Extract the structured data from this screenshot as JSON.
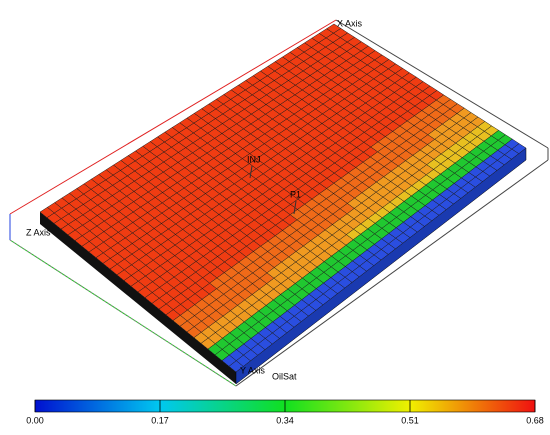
{
  "scene": {
    "axes": {
      "x": "X Axis",
      "y": "Y Axis",
      "z": "Z Axis"
    },
    "wells": [
      "INJ",
      "P1"
    ],
    "property": "OilSat"
  },
  "colorbar": {
    "range": [
      0,
      0.68
    ],
    "ticks": [
      {
        "value": 0,
        "label": "0.00"
      },
      {
        "value": 0.17,
        "label": "0.17"
      },
      {
        "value": 0.34,
        "label": "0.34"
      },
      {
        "value": 0.51,
        "label": "0.51"
      },
      {
        "value": 0.68,
        "label": "0.68"
      }
    ]
  }
}
